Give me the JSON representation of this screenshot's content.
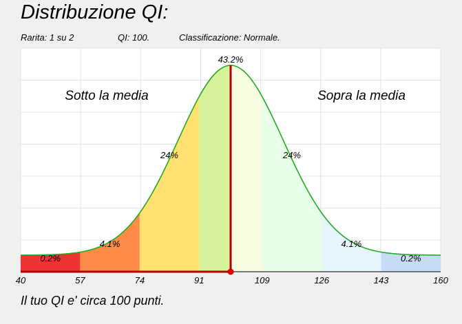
{
  "title": "Distribuzione QI:",
  "info": {
    "rarity": "Rarita: 1 su 2",
    "iq": "QI: 100.",
    "classification": "Classificazione: Normale."
  },
  "footer": "Il tuo QI e' circa 100 punti.",
  "chart_data": {
    "type": "area",
    "title": "Distribuzione QI:",
    "distribution": {
      "mean": 100,
      "sd": 15
    },
    "xlim": [
      40,
      160
    ],
    "x_ticks": [
      {
        "value": 40,
        "label": "40"
      },
      {
        "value": 57,
        "label": "57"
      },
      {
        "value": 74,
        "label": "74"
      },
      {
        "value": 91,
        "label": "91"
      },
      {
        "value": 109,
        "label": "109"
      },
      {
        "value": 126,
        "label": "126"
      },
      {
        "value": 143,
        "label": "143"
      },
      {
        "value": 160,
        "label": "160"
      }
    ],
    "bands": [
      {
        "from": 40,
        "to": 57,
        "color": "#ee3333"
      },
      {
        "from": 57,
        "to": 74,
        "color": "#ff8c46"
      },
      {
        "from": 74,
        "to": 91,
        "color": "#ffe070"
      },
      {
        "from": 91,
        "to": 100,
        "color": "#d6f29a"
      },
      {
        "from": 100,
        "to": 109,
        "color": "#f6fde0"
      },
      {
        "from": 109,
        "to": 126,
        "color": "#e6ffe6"
      },
      {
        "from": 126,
        "to": 143,
        "color": "#e6f4fd"
      },
      {
        "from": 143,
        "to": 160,
        "color": "#c6dcf4"
      }
    ],
    "percent_labels": [
      {
        "x": 48.5,
        "label": "0.2%"
      },
      {
        "x": 65.5,
        "label": "4.1%"
      },
      {
        "x": 82.5,
        "label": "24%"
      },
      {
        "x": 100,
        "label": "43.2%"
      },
      {
        "x": 117.5,
        "label": "24%"
      },
      {
        "x": 134.5,
        "label": "4.1%"
      },
      {
        "x": 151.5,
        "label": "0.2%"
      }
    ],
    "region_labels": {
      "below": "Sotto la media",
      "above": "Sopra la media"
    },
    "marker": {
      "value": 100,
      "color": "#b30000"
    },
    "curve_color": "#22aa22",
    "grid": true
  }
}
